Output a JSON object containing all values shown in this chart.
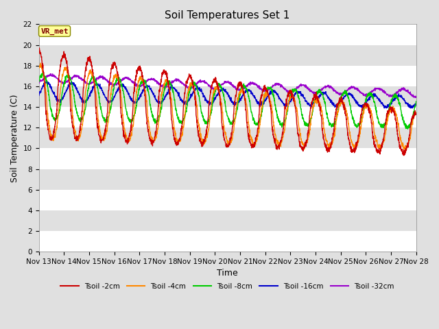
{
  "title": "Soil Temperatures Set 1",
  "xlabel": "Time",
  "ylabel": "Soil Temperature (C)",
  "ylim": [
    0,
    22
  ],
  "yticks": [
    0,
    2,
    4,
    6,
    8,
    10,
    12,
    14,
    16,
    18,
    20,
    22
  ],
  "n_days": 15,
  "x_labels": [
    "Nov 13",
    "Nov 14",
    "Nov 15",
    "Nov 16",
    "Nov 17",
    "Nov 18",
    "Nov 19",
    "Nov 20",
    "Nov 21",
    "Nov 22",
    "Nov 23",
    "Nov 24",
    "Nov 25",
    "Nov 26",
    "Nov 27",
    "Nov 28"
  ],
  "series_colors": [
    "#cc0000",
    "#ff8800",
    "#00cc00",
    "#0000cc",
    "#9900cc"
  ],
  "series_labels": [
    "Tsoil -2cm",
    "Tsoil -4cm",
    "Tsoil -8cm",
    "Tsoil -16cm",
    "Tsoil -32cm"
  ],
  "series_linewidths": [
    1.0,
    1.0,
    1.0,
    1.0,
    1.0
  ],
  "background_color": "#e0e0e0",
  "plot_bg_color": "#e0e0e0",
  "grid_color": "#ffffff",
  "annotation_text": "VR_met",
  "annotation_box_color": "#ffff99",
  "annotation_text_color": "#800000",
  "title_fontsize": 11,
  "axis_label_fontsize": 9,
  "tick_fontsize": 7.5,
  "figsize": [
    6.4,
    4.8
  ],
  "dpi": 100
}
